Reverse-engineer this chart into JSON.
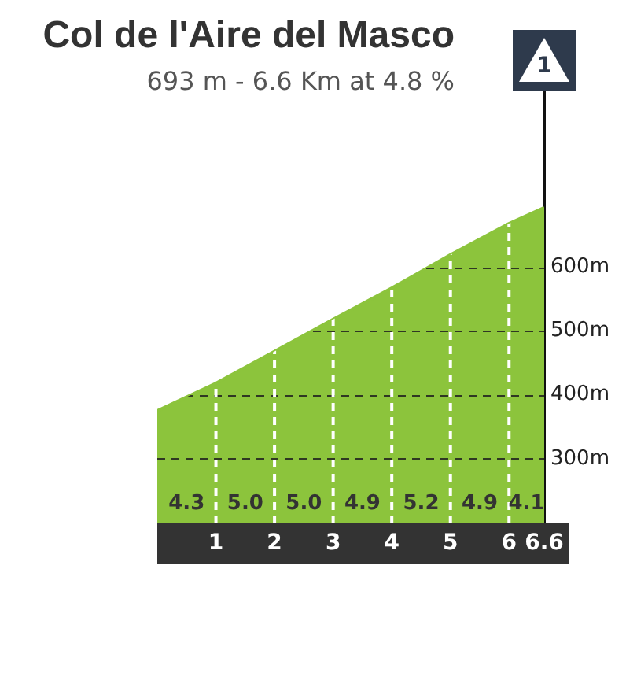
{
  "chart_data": {
    "type": "area",
    "title": "Col de l'Aire del Masco",
    "subtitle": "693 m - 6.6 Km at 4.8 %",
    "x": [
      0,
      1,
      2,
      3,
      4,
      5,
      6,
      6.6
    ],
    "values": [
      375,
      418,
      468,
      518,
      567,
      619,
      668,
      693
    ],
    "color": "#8cc43c",
    "xlim": [
      0,
      6.6
    ],
    "xticks": [
      1,
      2,
      3,
      4,
      5,
      6,
      6.6
    ],
    "ylim": [
      200,
      875
    ],
    "yticks": [
      {
        "value": 300,
        "label": "300m"
      },
      {
        "value": 400,
        "label": "400m"
      },
      {
        "value": 500,
        "label": "500m"
      },
      {
        "value": 600,
        "label": "600m"
      }
    ],
    "grid": true,
    "annotations": [
      "4.3",
      "5.0",
      "5.0",
      "4.9",
      "5.2",
      "4.9",
      "4.1",
      "1"
    ]
  }
}
